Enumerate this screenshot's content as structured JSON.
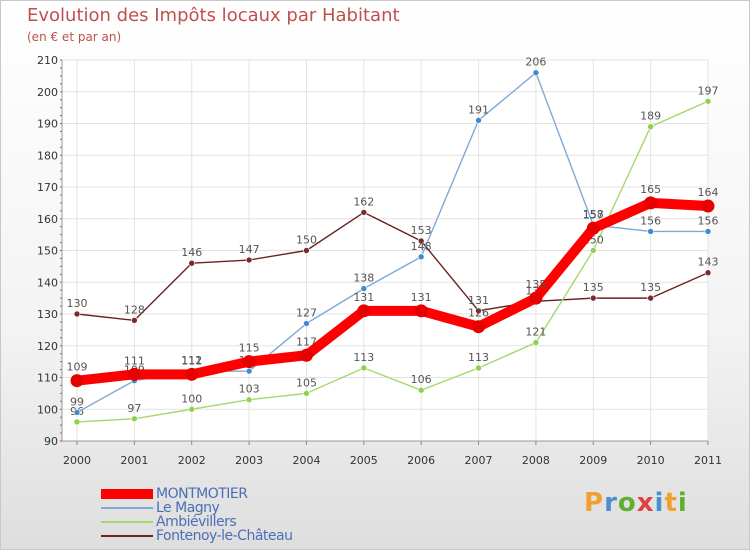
{
  "title": "Evolution des Impôts locaux par Habitant",
  "subtitle": "(en € et par an)",
  "logo": {
    "letters": [
      "P",
      "r",
      "o",
      "x",
      "i",
      "t",
      "i"
    ]
  },
  "colors": {
    "title": "#c0504d",
    "grid": "#e3e3e3",
    "logo": [
      "#f0a030",
      "#4a90d0",
      "#60b030",
      "#e04040",
      "#4a90d0",
      "#f0a030",
      "#60b030"
    ]
  },
  "chart_data": {
    "type": "line",
    "title": "Evolution des Impôts locaux par Habitant",
    "subtitle": "(en € et par an)",
    "xlabel": "",
    "ylabel": "",
    "categories": [
      "2000",
      "2001",
      "2002",
      "2003",
      "2004",
      "2005",
      "2006",
      "2007",
      "2008",
      "2009",
      "2010",
      "2011"
    ],
    "yticks": [
      "90",
      "100",
      "110",
      "120",
      "130",
      "140",
      "150",
      "160",
      "170",
      "180",
      "190",
      "200",
      "210"
    ],
    "ylim": [
      90,
      210
    ],
    "grid": true,
    "legend_position": "bottom-left",
    "series": [
      {
        "name": "Fontenoy-le-Château",
        "color": "#6b2222",
        "marker": "#7a2a2a",
        "weight": "thin",
        "values": [
          130,
          128,
          146,
          147,
          150,
          162,
          153,
          131,
          134,
          135,
          135,
          143
        ],
        "labels": [
          "130",
          "128",
          "146",
          "147",
          "150",
          "162",
          "153",
          "131",
          "134",
          "135",
          "135",
          "143"
        ]
      },
      {
        "name": "Ambiévillers",
        "color": "#a6d86e",
        "marker": "#8fd14f",
        "weight": "thin",
        "values": [
          96,
          97,
          100,
          103,
          105,
          113,
          106,
          113,
          121,
          150,
          189,
          197
        ],
        "labels": [
          "96",
          "97",
          "100",
          "103",
          "105",
          "113",
          "106",
          "113",
          "121",
          "150",
          "189",
          "197"
        ]
      },
      {
        "name": "Le Magny",
        "color": "#7fa9d4",
        "marker": "#3d8bd8",
        "weight": "thin",
        "values": [
          99,
          109,
          112,
          112,
          127,
          138,
          148,
          191,
          206,
          158,
          156,
          156
        ],
        "labels": [
          "99",
          "109",
          "112",
          "112",
          "127",
          "138",
          "148",
          "191",
          "206",
          "158",
          "156",
          "156"
        ]
      },
      {
        "name": "MONTMOTIER",
        "color": "#ff0000",
        "marker": "#e60000",
        "weight": "thick",
        "values": [
          109,
          111,
          111,
          115,
          117,
          131,
          131,
          126,
          135,
          157,
          165,
          164
        ],
        "labels": [
          "109",
          "111",
          "111",
          "115",
          "117",
          "131",
          "131",
          "126",
          "135",
          "157",
          "165",
          "164"
        ]
      }
    ],
    "legend_order": [
      "MONTMOTIER",
      "Le Magny",
      "Ambiévillers",
      "Fontenoy-le-Château"
    ]
  }
}
